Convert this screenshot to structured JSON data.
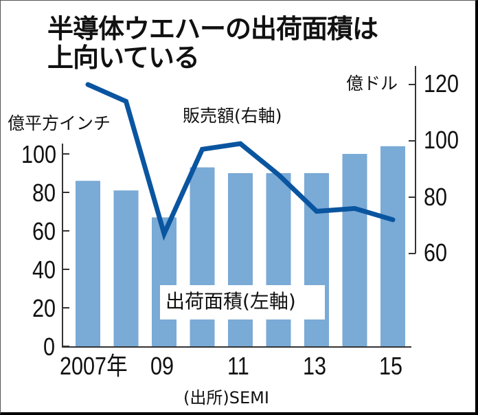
{
  "title": {
    "line1": "半導体ウエハーの出荷面積は",
    "line2": "上向いている"
  },
  "left_axis": {
    "unit": "億平方インチ",
    "ticks": [
      "100",
      "80",
      "60",
      "40",
      "20",
      "0"
    ]
  },
  "right_axis": {
    "unit": "億ドル",
    "ticks": [
      "120",
      "100",
      "80",
      "60"
    ]
  },
  "x_axis": {
    "ticks": [
      "2007年",
      "09",
      "11",
      "13",
      "15"
    ]
  },
  "series_labels": {
    "line": "販売額(右軸)",
    "bar": "出荷面積(左軸)"
  },
  "source": "(出所)SEMI",
  "colors": {
    "bar": "#7aaad6",
    "line": "#0a55a0"
  },
  "chart_data": {
    "type": "bar+line",
    "title": "半導体ウエハーの出荷面積は上向いている",
    "categories": [
      "2007",
      "2008",
      "2009",
      "2010",
      "2011",
      "2012",
      "2013",
      "2014",
      "2015"
    ],
    "series": [
      {
        "name": "出荷面積(左軸)",
        "type": "bar",
        "axis": "left",
        "unit": "億平方インチ",
        "values": [
          86,
          81,
          67,
          93,
          90,
          90,
          90,
          100,
          104
        ]
      },
      {
        "name": "販売額(右軸)",
        "type": "line",
        "axis": "right",
        "unit": "億ドル",
        "values": [
          120,
          114,
          67,
          97,
          99,
          88,
          75,
          76,
          72
        ]
      }
    ],
    "xlabel": "",
    "ylabel_left": "億平方インチ",
    "ylabel_right": "億ドル",
    "ylim_left": [
      0,
      100
    ],
    "ylim_right": [
      60,
      120
    ],
    "x_tick_labels": [
      "2007年",
      "09",
      "11",
      "13",
      "15"
    ],
    "grid": false,
    "source": "(出所)SEMI"
  }
}
